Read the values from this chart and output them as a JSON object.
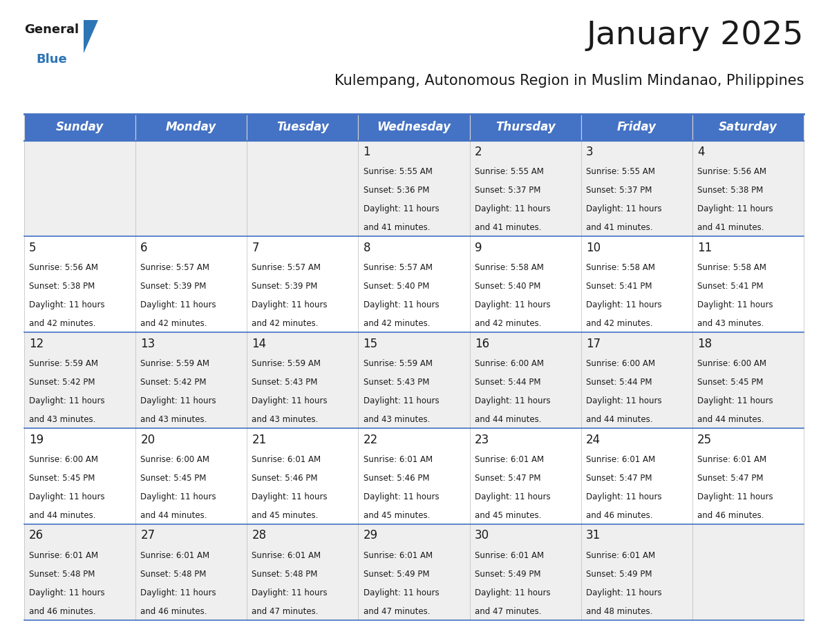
{
  "title": "January 2025",
  "subtitle": "Kulempang, Autonomous Region in Muslim Mindanao, Philippines",
  "header_bg": "#4472C4",
  "header_text_color": "#FFFFFF",
  "cell_bg_even": "#EFEFEF",
  "cell_bg_odd": "#FFFFFF",
  "border_color": "#4472C4",
  "day_headers": [
    "Sunday",
    "Monday",
    "Tuesday",
    "Wednesday",
    "Thursday",
    "Friday",
    "Saturday"
  ],
  "calendar": [
    [
      {
        "day": null,
        "sunrise": null,
        "sunset": null,
        "daylight_hrs": null,
        "daylight_min": null
      },
      {
        "day": null,
        "sunrise": null,
        "sunset": null,
        "daylight_hrs": null,
        "daylight_min": null
      },
      {
        "day": null,
        "sunrise": null,
        "sunset": null,
        "daylight_hrs": null,
        "daylight_min": null
      },
      {
        "day": 1,
        "sunrise": "5:55 AM",
        "sunset": "5:36 PM",
        "daylight_hrs": 11,
        "daylight_min": 41
      },
      {
        "day": 2,
        "sunrise": "5:55 AM",
        "sunset": "5:37 PM",
        "daylight_hrs": 11,
        "daylight_min": 41
      },
      {
        "day": 3,
        "sunrise": "5:55 AM",
        "sunset": "5:37 PM",
        "daylight_hrs": 11,
        "daylight_min": 41
      },
      {
        "day": 4,
        "sunrise": "5:56 AM",
        "sunset": "5:38 PM",
        "daylight_hrs": 11,
        "daylight_min": 41
      }
    ],
    [
      {
        "day": 5,
        "sunrise": "5:56 AM",
        "sunset": "5:38 PM",
        "daylight_hrs": 11,
        "daylight_min": 42
      },
      {
        "day": 6,
        "sunrise": "5:57 AM",
        "sunset": "5:39 PM",
        "daylight_hrs": 11,
        "daylight_min": 42
      },
      {
        "day": 7,
        "sunrise": "5:57 AM",
        "sunset": "5:39 PM",
        "daylight_hrs": 11,
        "daylight_min": 42
      },
      {
        "day": 8,
        "sunrise": "5:57 AM",
        "sunset": "5:40 PM",
        "daylight_hrs": 11,
        "daylight_min": 42
      },
      {
        "day": 9,
        "sunrise": "5:58 AM",
        "sunset": "5:40 PM",
        "daylight_hrs": 11,
        "daylight_min": 42
      },
      {
        "day": 10,
        "sunrise": "5:58 AM",
        "sunset": "5:41 PM",
        "daylight_hrs": 11,
        "daylight_min": 42
      },
      {
        "day": 11,
        "sunrise": "5:58 AM",
        "sunset": "5:41 PM",
        "daylight_hrs": 11,
        "daylight_min": 43
      }
    ],
    [
      {
        "day": 12,
        "sunrise": "5:59 AM",
        "sunset": "5:42 PM",
        "daylight_hrs": 11,
        "daylight_min": 43
      },
      {
        "day": 13,
        "sunrise": "5:59 AM",
        "sunset": "5:42 PM",
        "daylight_hrs": 11,
        "daylight_min": 43
      },
      {
        "day": 14,
        "sunrise": "5:59 AM",
        "sunset": "5:43 PM",
        "daylight_hrs": 11,
        "daylight_min": 43
      },
      {
        "day": 15,
        "sunrise": "5:59 AM",
        "sunset": "5:43 PM",
        "daylight_hrs": 11,
        "daylight_min": 43
      },
      {
        "day": 16,
        "sunrise": "6:00 AM",
        "sunset": "5:44 PM",
        "daylight_hrs": 11,
        "daylight_min": 44
      },
      {
        "day": 17,
        "sunrise": "6:00 AM",
        "sunset": "5:44 PM",
        "daylight_hrs": 11,
        "daylight_min": 44
      },
      {
        "day": 18,
        "sunrise": "6:00 AM",
        "sunset": "5:45 PM",
        "daylight_hrs": 11,
        "daylight_min": 44
      }
    ],
    [
      {
        "day": 19,
        "sunrise": "6:00 AM",
        "sunset": "5:45 PM",
        "daylight_hrs": 11,
        "daylight_min": 44
      },
      {
        "day": 20,
        "sunrise": "6:00 AM",
        "sunset": "5:45 PM",
        "daylight_hrs": 11,
        "daylight_min": 44
      },
      {
        "day": 21,
        "sunrise": "6:01 AM",
        "sunset": "5:46 PM",
        "daylight_hrs": 11,
        "daylight_min": 45
      },
      {
        "day": 22,
        "sunrise": "6:01 AM",
        "sunset": "5:46 PM",
        "daylight_hrs": 11,
        "daylight_min": 45
      },
      {
        "day": 23,
        "sunrise": "6:01 AM",
        "sunset": "5:47 PM",
        "daylight_hrs": 11,
        "daylight_min": 45
      },
      {
        "day": 24,
        "sunrise": "6:01 AM",
        "sunset": "5:47 PM",
        "daylight_hrs": 11,
        "daylight_min": 46
      },
      {
        "day": 25,
        "sunrise": "6:01 AM",
        "sunset": "5:47 PM",
        "daylight_hrs": 11,
        "daylight_min": 46
      }
    ],
    [
      {
        "day": 26,
        "sunrise": "6:01 AM",
        "sunset": "5:48 PM",
        "daylight_hrs": 11,
        "daylight_min": 46
      },
      {
        "day": 27,
        "sunrise": "6:01 AM",
        "sunset": "5:48 PM",
        "daylight_hrs": 11,
        "daylight_min": 46
      },
      {
        "day": 28,
        "sunrise": "6:01 AM",
        "sunset": "5:48 PM",
        "daylight_hrs": 11,
        "daylight_min": 47
      },
      {
        "day": 29,
        "sunrise": "6:01 AM",
        "sunset": "5:49 PM",
        "daylight_hrs": 11,
        "daylight_min": 47
      },
      {
        "day": 30,
        "sunrise": "6:01 AM",
        "sunset": "5:49 PM",
        "daylight_hrs": 11,
        "daylight_min": 47
      },
      {
        "day": 31,
        "sunrise": "6:01 AM",
        "sunset": "5:49 PM",
        "daylight_hrs": 11,
        "daylight_min": 48
      },
      {
        "day": null,
        "sunrise": null,
        "sunset": null,
        "daylight_hrs": null,
        "daylight_min": null
      }
    ]
  ],
  "logo_text1": "General",
  "logo_text2": "Blue",
  "logo_triangle_color": "#2E75B6",
  "title_fontsize": 34,
  "subtitle_fontsize": 15,
  "header_fontsize": 12,
  "day_num_fontsize": 12,
  "cell_text_fontsize": 8.5,
  "fig_width": 11.88,
  "fig_height": 9.18,
  "dpi": 100
}
